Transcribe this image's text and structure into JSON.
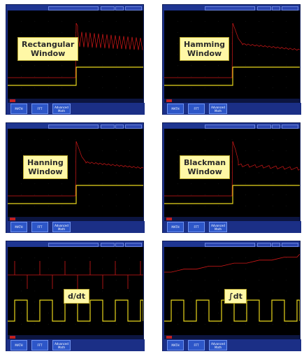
{
  "panels": [
    {
      "id": "rect",
      "label": "Rectangular Window",
      "label_lines": [
        "Rectangular",
        "Window"
      ],
      "type": "fft-spiky"
    },
    {
      "id": "hamming",
      "label": "Hamming Window",
      "label_lines": [
        "Hamming",
        "Window"
      ],
      "type": "fft-smooth"
    },
    {
      "id": "hanning",
      "label": "Hanning Window",
      "label_lines": [
        "Hanning",
        "Window"
      ],
      "type": "fft-smooth"
    },
    {
      "id": "blackman",
      "label": "Blackman Window",
      "label_lines": [
        "Blackman",
        "Window"
      ],
      "type": "fft-blackman"
    },
    {
      "id": "ddt",
      "label": "d/dt",
      "label_lines": [
        "d/dt"
      ],
      "type": "derivative"
    },
    {
      "id": "integral",
      "label": "∫dt",
      "label_lines": [
        "∫dt"
      ],
      "type": "integral"
    }
  ],
  "softkeys": [
    "MATH",
    "FFT",
    "Advanced Math"
  ],
  "colors": {
    "trace_red": "#d21818",
    "trace_yellow": "#e8d61c",
    "frame": "#1b2f86",
    "label_bg": "#fff8a6"
  }
}
